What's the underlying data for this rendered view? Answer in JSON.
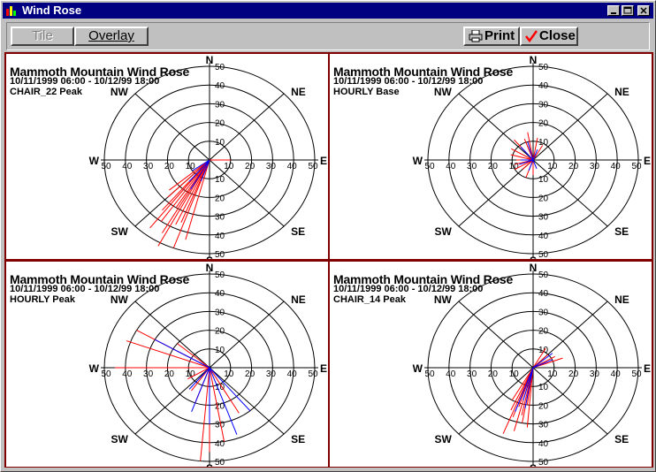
{
  "window": {
    "title": "Wind Rose"
  },
  "toolbar": {
    "tile_label": "Tile",
    "overlay_label": "Overlay",
    "print_label": "Print",
    "close_label": "Close"
  },
  "rose": {
    "rings": [
      "10",
      "20",
      "30",
      "40",
      "50"
    ],
    "directions": {
      "n": "N",
      "ne": "NE",
      "e": "E",
      "se": "SE",
      "s": "S",
      "sw": "SW",
      "w": "W",
      "nw": "NW"
    }
  },
  "panels": [
    {
      "title": "Mammoth Mountain Wind Rose",
      "date": "10/11/1999 06:00 - 10/12/99 18:00",
      "subtitle": "CHAIR_22 Peak",
      "red": [
        [
          205,
          38
        ],
        [
          210,
          45
        ],
        [
          215,
          40
        ],
        [
          200,
          50
        ],
        [
          220,
          35
        ],
        [
          195,
          44
        ],
        [
          225,
          28
        ],
        [
          208,
          52
        ],
        [
          212,
          30
        ],
        [
          218,
          46
        ],
        [
          202,
          36
        ],
        [
          230,
          25
        ],
        [
          90,
          10
        ]
      ],
      "blue": [
        [
          210,
          18
        ],
        [
          220,
          15
        ],
        [
          200,
          12
        ],
        [
          235,
          10
        ]
      ]
    },
    {
      "title": "Mammoth Mountain Wind Rose",
      "date": "10/11/1999 06:00 - 10/12/99 18:00",
      "subtitle": "HOURLY Base",
      "red": [
        [
          240,
          10
        ],
        [
          255,
          9
        ],
        [
          270,
          8
        ],
        [
          300,
          12
        ],
        [
          320,
          14
        ],
        [
          340,
          12
        ],
        [
          350,
          15
        ],
        [
          10,
          12
        ],
        [
          30,
          9
        ],
        [
          180,
          8
        ],
        [
          200,
          10
        ],
        [
          225,
          7
        ],
        [
          285,
          11
        ]
      ],
      "blue": [
        [
          250,
          7
        ],
        [
          270,
          6
        ],
        [
          320,
          9
        ],
        [
          345,
          10
        ],
        [
          200,
          6
        ],
        [
          20,
          6
        ],
        [
          160,
          5
        ]
      ]
    },
    {
      "title": "Mammoth Mountain Wind Rose",
      "date": "10/11/1999 06:00 - 10/12/99 18:00",
      "subtitle": "HOURLY Peak",
      "red": [
        [
          270,
          45
        ],
        [
          290,
          42
        ],
        [
          300,
          40
        ],
        [
          310,
          20
        ],
        [
          180,
          45
        ],
        [
          170,
          40
        ],
        [
          185,
          50
        ],
        [
          150,
          28
        ],
        [
          200,
          20
        ],
        [
          215,
          15
        ],
        [
          240,
          12
        ]
      ],
      "blue": [
        [
          180,
          30
        ],
        [
          160,
          38
        ],
        [
          200,
          25
        ],
        [
          140,
          30
        ],
        [
          300,
          30
        ],
        [
          220,
          15
        ]
      ]
    },
    {
      "title": "Mammoth Mountain Wind Rose",
      "date": "10/11/1999 06:00 - 10/12/99 18:00",
      "subtitle": "CHAIR_14 Peak",
      "red": [
        [
          190,
          30
        ],
        [
          195,
          35
        ],
        [
          200,
          28
        ],
        [
          205,
          25
        ],
        [
          185,
          32
        ],
        [
          198,
          22
        ],
        [
          202,
          38
        ],
        [
          188,
          20
        ],
        [
          60,
          12
        ],
        [
          70,
          15
        ],
        [
          45,
          10
        ],
        [
          30,
          12
        ],
        [
          210,
          20
        ],
        [
          192,
          26
        ]
      ],
      "blue": [
        [
          190,
          22
        ],
        [
          200,
          25
        ],
        [
          50,
          12
        ],
        [
          65,
          10
        ],
        [
          195,
          18
        ]
      ]
    }
  ],
  "colors": {
    "red": "#ff0000",
    "blue": "#0000ff",
    "title_bar": "#000080",
    "divider": "#800000"
  }
}
